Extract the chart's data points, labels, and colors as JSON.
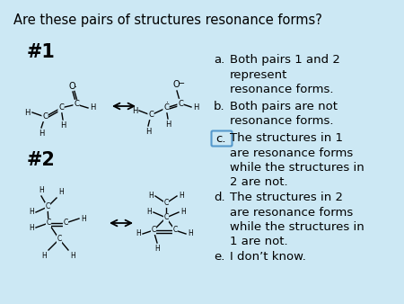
{
  "title": "Are these pairs of structures resonance forms?",
  "bg_color": "#cce8f4",
  "answer_a": "Both pairs 1 and 2\nrepresent\nresonance forms.",
  "answer_b": "Both pairs are not\nresonance forms.",
  "answer_c": "The structures in 1\nare resonance forms\nwhile the structures in\n2 are not.",
  "answer_d": "The structures in 2\nare resonance forms\nwhile the structures in\n1 are not.",
  "answer_e": "I don’t know.",
  "label1": "#1",
  "label2": "#2",
  "fig_width": 4.5,
  "fig_height": 3.38,
  "dpi": 100,
  "box_color": "#5599cc"
}
